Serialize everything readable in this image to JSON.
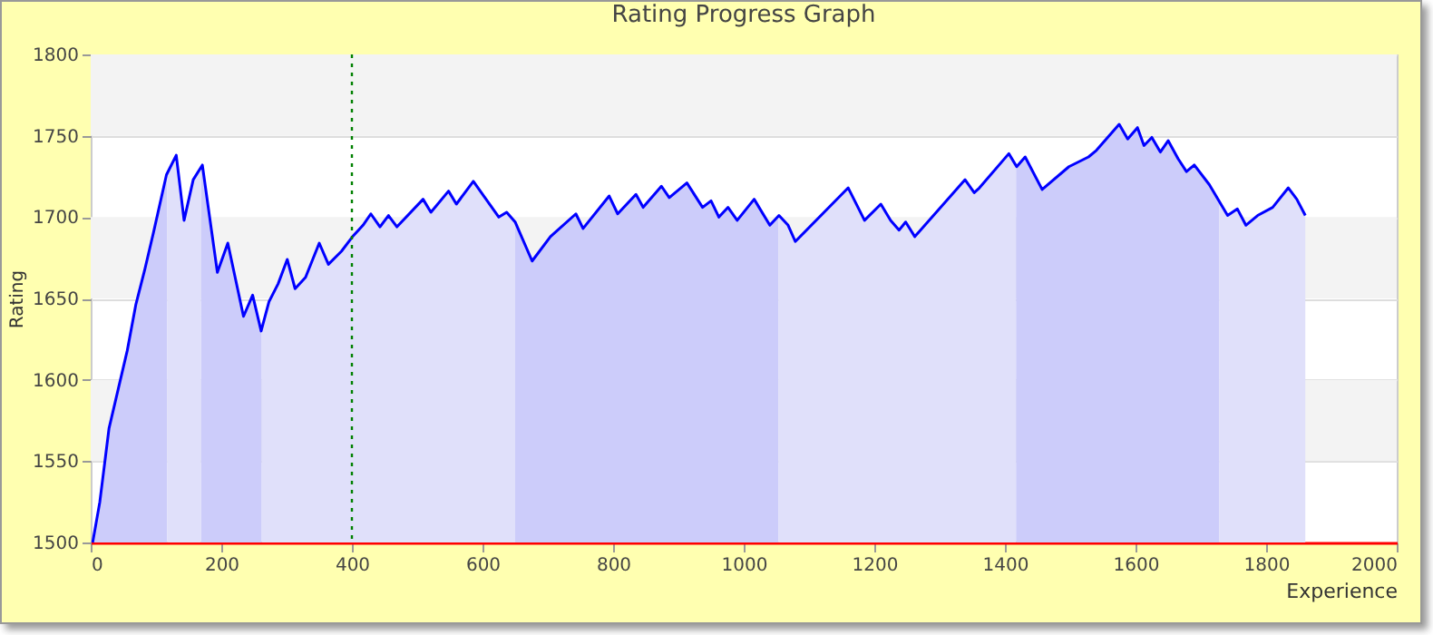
{
  "chart_data": {
    "type": "area",
    "title": "Rating Progress Graph",
    "xlabel": "Experience",
    "ylabel": "Rating",
    "xlim": [
      0,
      2000
    ],
    "xticks": [
      0,
      200,
      400,
      600,
      800,
      1000,
      1200,
      1400,
      1600,
      1800,
      2000
    ],
    "ylim": [
      1500,
      1800
    ],
    "yticks": [
      1500,
      1550,
      1600,
      1650,
      1700,
      1750,
      1800
    ],
    "grid": "y",
    "series": [
      {
        "color": "#ccccfa",
        "x": [
          3,
          14,
          28,
          42,
          56,
          69,
          83,
          97,
          116,
          117
        ],
        "values": [
          1500,
          1525,
          1570,
          1594,
          1618,
          1646,
          1668,
          1692,
          1726,
          1727
        ]
      },
      {
        "color": "#e0e0fa",
        "x": [
          117,
          131,
          143,
          157,
          169
        ],
        "values": [
          1727,
          1738,
          1698,
          1723,
          1731
        ]
      },
      {
        "color": "#ccccfa",
        "x": [
          169,
          171,
          194,
          210,
          234,
          248,
          261,
          262
        ],
        "values": [
          1731,
          1732,
          1666,
          1684,
          1639,
          1652,
          1630,
          1632
        ]
      },
      {
        "color": "#e0e0fa",
        "x": [
          262,
          273,
          287,
          301,
          313,
          329,
          350,
          364,
          384,
          401,
          417,
          429,
          443,
          456,
          469,
          509,
          521,
          548,
          560,
          586,
          602,
          625,
          637,
          650
        ],
        "values": [
          1632,
          1648,
          1659,
          1674,
          1656,
          1663,
          1684,
          1671,
          1679,
          1688,
          1695,
          1702,
          1694,
          1701,
          1694,
          1711,
          1703,
          1716,
          1708,
          1722,
          1713,
          1700,
          1703,
          1697
        ]
      },
      {
        "color": "#ccccfa",
        "x": [
          650,
          676,
          704,
          743,
          754,
          794,
          807,
          835,
          846,
          874,
          886,
          913,
          937,
          950,
          962,
          976,
          990,
          1016,
          1040,
          1053
        ],
        "values": [
          1697,
          1673,
          1688,
          1702,
          1693,
          1713,
          1702,
          1714,
          1706,
          1719,
          1712,
          1721,
          1706,
          1710,
          1700,
          1706,
          1698,
          1711,
          1695,
          1700
        ]
      },
      {
        "color": "#e0e0fa",
        "x": [
          1053,
          1054,
          1068,
          1079,
          1160,
          1185,
          1210,
          1225,
          1238,
          1248,
          1262,
          1339,
          1353,
          1361,
          1406,
          1417
        ],
        "values": [
          1700,
          1701,
          1695,
          1685,
          1718,
          1698,
          1708,
          1698,
          1692,
          1697,
          1688,
          1723,
          1715,
          1718,
          1739,
          1732
        ]
      },
      {
        "color": "#ccccfa",
        "x": [
          1417,
          1418,
          1431,
          1457,
          1498,
          1528,
          1540,
          1575,
          1588,
          1603,
          1613,
          1625,
          1638,
          1650,
          1665,
          1678,
          1690,
          1713,
          1728
        ],
        "values": [
          1732,
          1731,
          1737,
          1717,
          1731,
          1737,
          1741,
          1757,
          1748,
          1755,
          1744,
          1749,
          1740,
          1747,
          1736,
          1728,
          1732,
          1720,
          1711
        ]
      },
      {
        "color": "#e0e0fa",
        "x": [
          1728,
          1741,
          1756,
          1769,
          1787,
          1810,
          1834,
          1847,
          1860
        ],
        "values": [
          1711,
          1701,
          1705,
          1695,
          1701,
          1706,
          1718,
          1711,
          1701
        ]
      },
      {
        "type": "line",
        "color": "#0000ff",
        "x": [
          3,
          14,
          28,
          42,
          56,
          69,
          83,
          97,
          116,
          131,
          143,
          157,
          171,
          194,
          210,
          234,
          248,
          261,
          273,
          287,
          301,
          313,
          329,
          350,
          364,
          384,
          401,
          417,
          429,
          443,
          456,
          469,
          509,
          521,
          548,
          560,
          586,
          602,
          625,
          637,
          650,
          676,
          704,
          743,
          754,
          794,
          807,
          835,
          846,
          874,
          886,
          913,
          937,
          950,
          962,
          976,
          990,
          1016,
          1040,
          1054,
          1068,
          1079,
          1160,
          1185,
          1210,
          1225,
          1238,
          1248,
          1262,
          1339,
          1353,
          1361,
          1406,
          1418,
          1431,
          1457,
          1498,
          1528,
          1540,
          1575,
          1588,
          1603,
          1613,
          1625,
          1638,
          1650,
          1665,
          1678,
          1690,
          1713,
          1741,
          1756,
          1769,
          1787,
          1810,
          1834,
          1847,
          1860
        ],
        "values": [
          1500,
          1525,
          1570,
          1594,
          1618,
          1646,
          1668,
          1692,
          1726,
          1738,
          1698,
          1723,
          1732,
          1666,
          1684,
          1639,
          1652,
          1630,
          1648,
          1659,
          1674,
          1656,
          1663,
          1684,
          1671,
          1679,
          1688,
          1695,
          1702,
          1694,
          1701,
          1694,
          1711,
          1703,
          1716,
          1708,
          1722,
          1713,
          1700,
          1703,
          1697,
          1673,
          1688,
          1702,
          1693,
          1713,
          1702,
          1714,
          1706,
          1719,
          1712,
          1721,
          1706,
          1710,
          1700,
          1706,
          1698,
          1711,
          1695,
          1701,
          1695,
          1685,
          1718,
          1698,
          1708,
          1698,
          1692,
          1697,
          1688,
          1723,
          1715,
          1718,
          1739,
          1731,
          1737,
          1717,
          1731,
          1737,
          1741,
          1757,
          1748,
          1755,
          1744,
          1749,
          1740,
          1747,
          1736,
          1728,
          1732,
          1720,
          1701,
          1705,
          1695,
          1701,
          1706,
          1718,
          1711,
          1701
        ]
      }
    ],
    "ref_lines": [
      {
        "axis": "x",
        "value": 400,
        "color": "#008000",
        "line_style": "dotted"
      }
    ]
  }
}
